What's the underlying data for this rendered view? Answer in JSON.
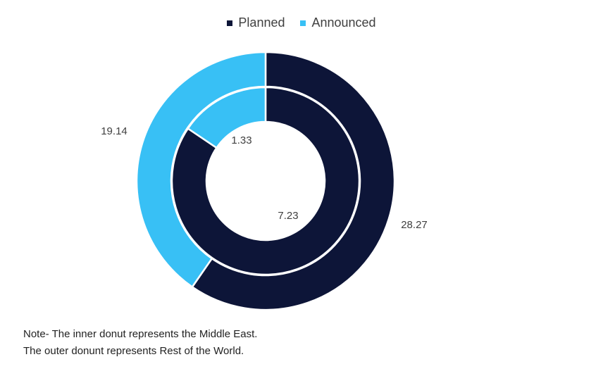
{
  "chart_data": {
    "type": "donut",
    "categories": [
      "Planned",
      "Announced"
    ],
    "series": [
      {
        "name": "Middle East",
        "ring": "inner",
        "values": [
          7.23,
          1.33
        ]
      },
      {
        "name": "Rest of the World",
        "ring": "outer",
        "values": [
          28.27,
          19.14
        ]
      }
    ],
    "legend_position": "top",
    "colors": {
      "Planned": "#0d1538",
      "Announced": "#38c0f5"
    }
  },
  "legend": [
    {
      "label": "Planned",
      "color": "#0d1538"
    },
    {
      "label": "Announced",
      "color": "#38c0f5"
    }
  ],
  "note": {
    "line1": "Note- The inner donut represents the Middle East.",
    "line2": "The outer donunt represents Rest of the World."
  }
}
